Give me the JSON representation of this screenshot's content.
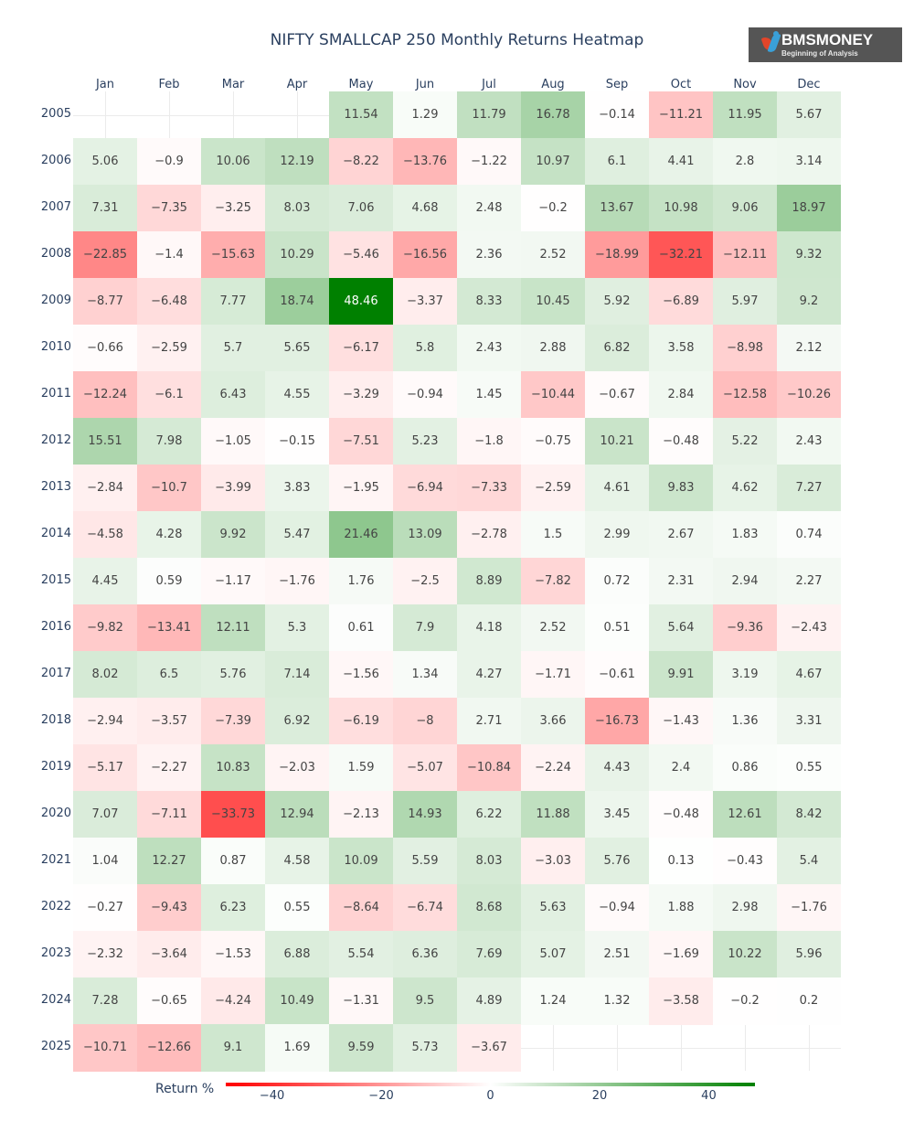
{
  "title": "NIFTY SMALLCAP 250 Monthly Returns Heatmap",
  "logo": {
    "name": "BMSMONEY",
    "tagline": "Beginning of Analysis"
  },
  "colorbar": {
    "title": "Return %",
    "ticks": [
      "−40",
      "−20",
      "0",
      "20",
      "40"
    ],
    "tick_values": [
      -40,
      -20,
      0,
      20,
      40
    ],
    "range": [
      -48.46,
      48.46
    ],
    "colors": {
      "negative": "#ff0000",
      "zero": "#ffffff",
      "positive": "#008000"
    }
  },
  "chart_data": {
    "type": "heatmap",
    "title": "NIFTY SMALLCAP 250 Monthly Returns Heatmap",
    "xlabel": "",
    "ylabel": "",
    "colorbar_title": "Return %",
    "x": [
      "Jan",
      "Feb",
      "Mar",
      "Apr",
      "May",
      "Jun",
      "Jul",
      "Aug",
      "Sep",
      "Oct",
      "Nov",
      "Dec"
    ],
    "y": [
      "2005",
      "2006",
      "2007",
      "2008",
      "2009",
      "2010",
      "2011",
      "2012",
      "2013",
      "2014",
      "2015",
      "2016",
      "2017",
      "2018",
      "2019",
      "2020",
      "2021",
      "2022",
      "2023",
      "2024",
      "2025"
    ],
    "z": [
      [
        null,
        null,
        null,
        null,
        11.54,
        1.29,
        11.79,
        16.78,
        -0.14,
        -11.21,
        11.95,
        5.67
      ],
      [
        5.06,
        -0.9,
        10.06,
        12.19,
        -8.22,
        -13.76,
        -1.22,
        10.97,
        6.1,
        4.41,
        2.8,
        3.14
      ],
      [
        7.31,
        -7.35,
        -3.25,
        8.03,
        7.06,
        4.68,
        2.48,
        -0.2,
        13.67,
        10.98,
        9.06,
        18.97
      ],
      [
        -22.85,
        -1.4,
        -15.63,
        10.29,
        -5.46,
        -16.56,
        2.36,
        2.52,
        -18.99,
        -32.21,
        -12.11,
        9.32
      ],
      [
        -8.77,
        -6.48,
        7.77,
        18.74,
        48.46,
        -3.37,
        8.33,
        10.45,
        5.92,
        -6.89,
        5.97,
        9.2
      ],
      [
        -0.66,
        -2.59,
        5.7,
        5.65,
        -6.17,
        5.8,
        2.43,
        2.88,
        6.82,
        3.58,
        -8.98,
        2.12
      ],
      [
        -12.24,
        -6.1,
        6.43,
        4.55,
        -3.29,
        -0.94,
        1.45,
        -10.44,
        -0.67,
        2.84,
        -12.58,
        -10.26
      ],
      [
        15.51,
        7.98,
        -1.05,
        -0.15,
        -7.51,
        5.23,
        -1.8,
        -0.75,
        10.21,
        -0.48,
        5.22,
        2.43
      ],
      [
        -2.84,
        -10.7,
        -3.99,
        3.83,
        -1.95,
        -6.94,
        -7.33,
        -2.59,
        4.61,
        9.83,
        4.62,
        7.27
      ],
      [
        -4.58,
        4.28,
        9.92,
        5.47,
        21.46,
        13.09,
        -2.78,
        1.5,
        2.99,
        2.67,
        1.83,
        0.74
      ],
      [
        4.45,
        0.59,
        -1.17,
        -1.76,
        1.76,
        -2.5,
        8.89,
        -7.82,
        0.72,
        2.31,
        2.94,
        2.27
      ],
      [
        -9.82,
        -13.41,
        12.11,
        5.3,
        0.61,
        7.9,
        4.18,
        2.52,
        0.51,
        5.64,
        -9.36,
        -2.43
      ],
      [
        8.02,
        6.5,
        5.76,
        7.14,
        -1.56,
        1.34,
        4.27,
        -1.71,
        -0.61,
        9.91,
        3.19,
        4.67
      ],
      [
        -2.94,
        -3.57,
        -7.39,
        6.92,
        -6.19,
        -8,
        2.71,
        3.66,
        -16.73,
        -1.43,
        1.36,
        3.31
      ],
      [
        -5.17,
        -2.27,
        10.83,
        -2.03,
        1.59,
        -5.07,
        -10.84,
        -2.24,
        4.43,
        2.4,
        0.86,
        0.55
      ],
      [
        7.07,
        -7.11,
        -33.73,
        12.94,
        -2.13,
        14.93,
        6.22,
        11.88,
        3.45,
        -0.48,
        12.61,
        8.42
      ],
      [
        1.04,
        12.27,
        0.87,
        4.58,
        10.09,
        5.59,
        8.03,
        -3.03,
        5.76,
        0.13,
        -0.43,
        5.4
      ],
      [
        -0.27,
        -9.43,
        6.23,
        0.55,
        -8.64,
        -6.74,
        8.68,
        5.63,
        -0.94,
        1.88,
        2.98,
        -1.76
      ],
      [
        -2.32,
        -3.64,
        -1.53,
        6.88,
        5.54,
        6.36,
        7.69,
        5.07,
        2.51,
        -1.69,
        10.22,
        5.96
      ],
      [
        7.28,
        -0.65,
        -4.24,
        10.49,
        -1.31,
        9.5,
        4.89,
        1.24,
        1.32,
        -3.58,
        -0.2,
        0.2
      ],
      [
        -10.71,
        -12.66,
        9.1,
        1.69,
        9.59,
        5.73,
        -3.67,
        null,
        null,
        null,
        null,
        null
      ]
    ],
    "zrange": [
      -48.46,
      48.46
    ],
    "text_labels_shown": true,
    "grid": true,
    "legend_position": "bottom-horizontal-colorbar"
  }
}
